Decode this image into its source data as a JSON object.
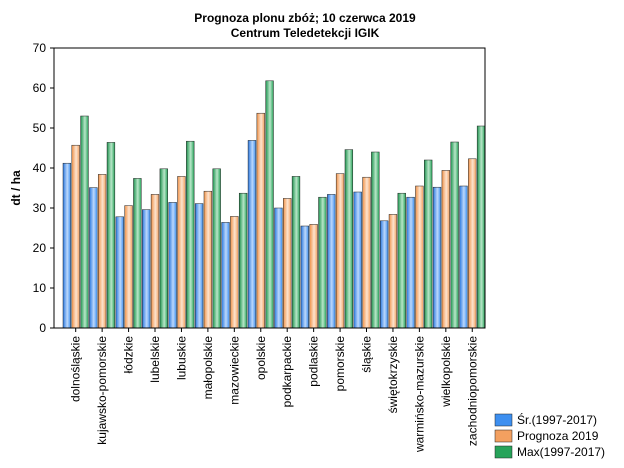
{
  "chart_data": {
    "type": "bar",
    "title": "Prognoza plonu zbóż; 10 czerwca 2019",
    "subtitle": "Centrum Teledetekcji IGIK",
    "xlabel": "",
    "ylabel": "dt / ha",
    "ylim": [
      0,
      70
    ],
    "yticks": [
      "0",
      "10",
      "20",
      "30",
      "40",
      "50",
      "60",
      "70"
    ],
    "grid": false,
    "legend_position": "bottom-right",
    "categories": [
      "dolnośląskie",
      "kujawsko-pomorskie",
      "łódzkie",
      "lubelskie",
      "lubuskie",
      "małopolskie",
      "mazowieckie",
      "opolskie",
      "podkarpackie",
      "podlaskie",
      "pomorskie",
      "śląskie",
      "świętokrzyskie",
      "warmińsko-mazurskie",
      "wielkopolskie",
      "zachodniopomorskie"
    ],
    "series": [
      {
        "name": "Śr.(1997-2017)",
        "color": "#3d8ff0",
        "values": [
          41.2,
          35.1,
          27.8,
          29.6,
          31.4,
          31.1,
          26.4,
          46.9,
          30.0,
          25.5,
          33.4,
          34.0,
          26.8,
          32.7,
          35.2,
          35.5
        ]
      },
      {
        "name": "Prognoza 2019",
        "color": "#f3a060",
        "values": [
          45.7,
          38.4,
          30.6,
          33.4,
          37.9,
          34.2,
          27.9,
          53.7,
          32.4,
          25.9,
          38.6,
          37.7,
          28.4,
          35.5,
          39.4,
          42.3
        ]
      },
      {
        "name": "Max(1997-2017)",
        "color": "#27a35a",
        "values": [
          53.0,
          46.4,
          37.4,
          39.8,
          46.7,
          39.8,
          33.7,
          61.8,
          37.9,
          32.7,
          44.6,
          44.0,
          33.7,
          42.0,
          46.5,
          50.5
        ]
      }
    ]
  }
}
